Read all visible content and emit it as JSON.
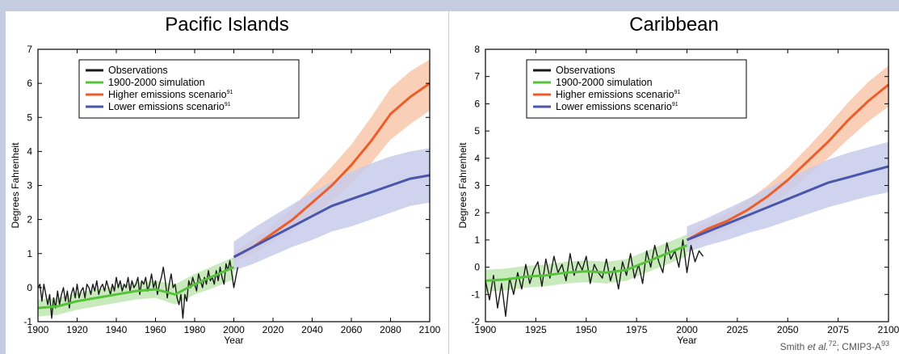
{
  "credit": {
    "prefix": "Smith ",
    "et_al": "et al.",
    "ref1": "72",
    "middle": "; CMIP3-A",
    "ref2": "93"
  },
  "chart_data": [
    {
      "type": "line",
      "title": "Pacific Islands",
      "xlabel": "Year",
      "ylabel": "Degrees Fahrenheit",
      "xlim": [
        1900,
        2100
      ],
      "ylim": [
        -1,
        7
      ],
      "xticks": [
        1900,
        1920,
        1940,
        1960,
        1980,
        2000,
        2020,
        2040,
        2060,
        2080,
        2100
      ],
      "yticks": [
        -1,
        0,
        1,
        2,
        3,
        4,
        5,
        6,
        7
      ],
      "legend": {
        "position": "top-left",
        "entries": [
          {
            "label": "Observations",
            "sup": "",
            "color": "#1a1a1a"
          },
          {
            "label": "1900-2000 simulation",
            "sup": "",
            "color": "#55c23a"
          },
          {
            "label": "Higher emissions scenario",
            "sup": "91",
            "color": "#ec5d2a"
          },
          {
            "label": "Lower emissions scenario",
            "sup": "91",
            "color": "#4a56aa"
          }
        ]
      },
      "series": [
        {
          "name": "Observations",
          "color": "#1a1a1a",
          "x": [
            1900,
            1901,
            1902,
            1903,
            1904,
            1905,
            1906,
            1907,
            1908,
            1909,
            1910,
            1911,
            1912,
            1913,
            1914,
            1915,
            1916,
            1917,
            1918,
            1919,
            1920,
            1921,
            1922,
            1923,
            1924,
            1925,
            1926,
            1927,
            1928,
            1929,
            1930,
            1931,
            1932,
            1933,
            1934,
            1935,
            1936,
            1937,
            1938,
            1939,
            1940,
            1941,
            1942,
            1943,
            1944,
            1945,
            1946,
            1947,
            1948,
            1949,
            1950,
            1951,
            1952,
            1953,
            1954,
            1955,
            1956,
            1957,
            1958,
            1959,
            1960,
            1961,
            1962,
            1963,
            1964,
            1965,
            1966,
            1967,
            1968,
            1969,
            1970,
            1971,
            1972,
            1973,
            1974,
            1975,
            1976,
            1977,
            1978,
            1979,
            1980,
            1981,
            1982,
            1983,
            1984,
            1985,
            1986,
            1987,
            1988,
            1989,
            1990,
            1991,
            1992,
            1993,
            1994,
            1995,
            1996,
            1997,
            1998,
            1999,
            2000,
            2001,
            2002
          ],
          "values": [
            0.0,
            0.1,
            -0.4,
            0.1,
            -0.2,
            -0.5,
            -0.2,
            -0.9,
            -0.3,
            -0.6,
            -0.1,
            -0.5,
            -0.2,
            0.0,
            -0.4,
            -0.1,
            -0.6,
            -0.2,
            0.0,
            -0.3,
            0.1,
            -0.3,
            -0.1,
            0.0,
            -0.3,
            0.1,
            0.0,
            -0.2,
            0.1,
            -0.1,
            0.2,
            -0.2,
            0.0,
            0.1,
            -0.1,
            0.2,
            0.0,
            -0.2,
            0.1,
            -0.1,
            0.3,
            0.0,
            0.2,
            -0.1,
            0.1,
            0.0,
            0.3,
            -0.1,
            0.2,
            0.0,
            0.1,
            0.3,
            -0.2,
            0.2,
            0.1,
            0.3,
            -0.1,
            0.1,
            0.4,
            0.0,
            0.2,
            -0.2,
            0.1,
            0.3,
            0.6,
            0.2,
            -0.3,
            0.1,
            0.4,
            0.0,
            0.1,
            -0.3,
            -0.5,
            -0.2,
            -0.9,
            -0.2,
            -0.4,
            0.2,
            0.0,
            0.3,
            0.1,
            -0.1,
            0.4,
            0.2,
            0.0,
            0.3,
            0.1,
            0.5,
            0.2,
            0.3,
            0.1,
            0.5,
            0.2,
            0.6,
            0.3,
            0.1,
            0.7,
            0.5,
            0.8,
            0.4,
            0.0,
            0.3,
            0.6
          ]
        },
        {
          "name": "1900-2000 simulation",
          "color": "#55c23a",
          "band_color": "#bfe6b0",
          "x": [
            1900,
            1910,
            1920,
            1930,
            1940,
            1950,
            1960,
            1970,
            1980,
            1990,
            2000
          ],
          "values": [
            -0.6,
            -0.55,
            -0.4,
            -0.3,
            -0.2,
            -0.1,
            -0.05,
            -0.2,
            0.1,
            0.35,
            0.6
          ],
          "lower": [
            -0.85,
            -0.8,
            -0.65,
            -0.55,
            -0.45,
            -0.35,
            -0.3,
            -0.5,
            -0.2,
            0.0,
            0.25
          ],
          "upper": [
            -0.35,
            -0.3,
            -0.15,
            -0.05,
            0.05,
            0.15,
            0.2,
            0.1,
            0.4,
            0.65,
            0.9
          ]
        },
        {
          "name": "Higher emissions scenario",
          "color": "#ec5d2a",
          "band_color": "#f9c7ab",
          "x": [
            2000,
            2010,
            2020,
            2030,
            2040,
            2050,
            2060,
            2070,
            2080,
            2090,
            2100
          ],
          "values": [
            0.9,
            1.2,
            1.6,
            2.0,
            2.5,
            3.0,
            3.6,
            4.3,
            5.1,
            5.6,
            6.0
          ],
          "lower": [
            0.75,
            1.0,
            1.35,
            1.7,
            2.1,
            2.55,
            3.05,
            3.65,
            4.35,
            4.8,
            5.2
          ],
          "upper": [
            1.05,
            1.4,
            1.85,
            2.35,
            2.95,
            3.55,
            4.2,
            5.0,
            5.85,
            6.35,
            6.7
          ]
        },
        {
          "name": "Lower emissions scenario",
          "color": "#4a56aa",
          "band_color": "#c8cbea",
          "x": [
            2000,
            2010,
            2020,
            2030,
            2040,
            2050,
            2060,
            2070,
            2080,
            2090,
            2100
          ],
          "values": [
            0.9,
            1.2,
            1.5,
            1.8,
            2.1,
            2.4,
            2.6,
            2.8,
            3.0,
            3.2,
            3.3
          ],
          "lower": [
            0.5,
            0.7,
            0.95,
            1.2,
            1.4,
            1.65,
            1.8,
            2.0,
            2.2,
            2.4,
            2.5
          ],
          "upper": [
            1.35,
            1.75,
            2.1,
            2.45,
            2.8,
            3.1,
            3.4,
            3.65,
            3.85,
            4.0,
            4.1
          ]
        }
      ]
    },
    {
      "type": "line",
      "title": "Caribbean",
      "xlabel": "Year",
      "ylabel": "Degrees Fahrenheit",
      "xlim": [
        1900,
        2100
      ],
      "ylim": [
        -2,
        8
      ],
      "xticks": [
        1900,
        1925,
        1950,
        1975,
        2000,
        2025,
        2050,
        2075,
        2100
      ],
      "yticks": [
        -2,
        -1,
        0,
        1,
        2,
        3,
        4,
        5,
        6,
        7,
        8
      ],
      "legend": {
        "position": "top-left",
        "entries": [
          {
            "label": "Observations",
            "sup": "",
            "color": "#1a1a1a"
          },
          {
            "label": "1900-2000 simulation",
            "sup": "",
            "color": "#55c23a"
          },
          {
            "label": "Higher emissions scenario",
            "sup": "91",
            "color": "#ec5d2a"
          },
          {
            "label": "Lower emissions scenario",
            "sup": "91",
            "color": "#4a56aa"
          }
        ]
      },
      "series": [
        {
          "name": "Observations",
          "color": "#1a1a1a",
          "x": [
            1900,
            1902,
            1904,
            1906,
            1908,
            1910,
            1912,
            1914,
            1916,
            1918,
            1920,
            1922,
            1924,
            1926,
            1928,
            1930,
            1932,
            1934,
            1936,
            1938,
            1940,
            1942,
            1944,
            1946,
            1948,
            1950,
            1952,
            1954,
            1956,
            1958,
            1960,
            1962,
            1964,
            1966,
            1968,
            1970,
            1972,
            1974,
            1976,
            1978,
            1980,
            1982,
            1984,
            1986,
            1988,
            1990,
            1992,
            1994,
            1996,
            1998,
            2000,
            2002,
            2004,
            2006,
            2008
          ],
          "values": [
            -0.5,
            -1.2,
            -0.3,
            -1.5,
            -0.6,
            -1.8,
            -0.4,
            -1.0,
            -0.2,
            -0.8,
            0.1,
            -0.6,
            -0.1,
            0.2,
            -0.7,
            0.3,
            -0.4,
            0.4,
            -0.2,
            0.1,
            -0.5,
            0.5,
            -0.3,
            0.2,
            -0.1,
            0.4,
            -0.6,
            0.1,
            -0.2,
            -0.4,
            0.3,
            -0.5,
            0.0,
            -0.8,
            0.2,
            -0.3,
            0.5,
            -0.4,
            0.1,
            -0.6,
            0.6,
            0.0,
            0.8,
            0.2,
            -0.2,
            0.9,
            0.3,
            0.6,
            0.0,
            1.0,
            -0.2,
            0.8,
            0.2,
            0.6,
            0.4
          ]
        },
        {
          "name": "1900-2000 simulation",
          "color": "#55c23a",
          "band_color": "#bfe6b0",
          "x": [
            1900,
            1910,
            1920,
            1930,
            1940,
            1950,
            1960,
            1970,
            1980,
            1990,
            2000
          ],
          "values": [
            -0.5,
            -0.45,
            -0.35,
            -0.3,
            -0.2,
            -0.15,
            -0.2,
            -0.1,
            0.2,
            0.5,
            0.8
          ],
          "lower": [
            -0.9,
            -0.85,
            -0.75,
            -0.7,
            -0.6,
            -0.55,
            -0.6,
            -0.5,
            -0.2,
            0.1,
            0.4
          ],
          "upper": [
            -0.1,
            -0.05,
            0.05,
            0.1,
            0.2,
            0.25,
            0.2,
            0.3,
            0.6,
            0.9,
            1.2
          ]
        },
        {
          "name": "Higher emissions scenario",
          "color": "#ec5d2a",
          "band_color": "#f9c7ab",
          "x": [
            2000,
            2010,
            2020,
            2030,
            2040,
            2050,
            2060,
            2070,
            2080,
            2090,
            2100
          ],
          "values": [
            1.0,
            1.4,
            1.7,
            2.1,
            2.6,
            3.2,
            3.9,
            4.6,
            5.4,
            6.1,
            6.7
          ],
          "lower": [
            0.8,
            1.15,
            1.4,
            1.75,
            2.2,
            2.75,
            3.35,
            4.0,
            4.7,
            5.35,
            5.9
          ],
          "upper": [
            1.25,
            1.65,
            2.0,
            2.45,
            3.0,
            3.65,
            4.4,
            5.2,
            6.05,
            6.8,
            7.4
          ]
        },
        {
          "name": "Lower emissions scenario",
          "color": "#4a56aa",
          "band_color": "#c8cbea",
          "x": [
            2000,
            2010,
            2020,
            2030,
            2040,
            2050,
            2060,
            2070,
            2080,
            2090,
            2100
          ],
          "values": [
            1.0,
            1.3,
            1.6,
            1.9,
            2.2,
            2.5,
            2.8,
            3.1,
            3.3,
            3.5,
            3.7
          ],
          "lower": [
            0.55,
            0.8,
            1.0,
            1.25,
            1.45,
            1.7,
            1.95,
            2.2,
            2.4,
            2.6,
            2.75
          ],
          "upper": [
            1.5,
            1.8,
            2.15,
            2.5,
            2.9,
            3.25,
            3.6,
            3.95,
            4.2,
            4.4,
            4.6
          ]
        }
      ]
    }
  ]
}
